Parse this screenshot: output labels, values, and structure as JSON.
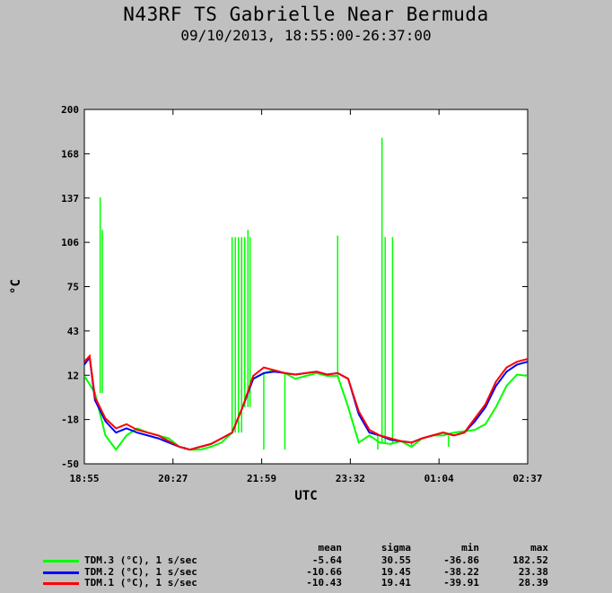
{
  "title": "N43RF TS Gabrielle Near Bermuda",
  "subtitle": "09/10/2013, 18:55:00-26:37:00",
  "chart_data": {
    "type": "line",
    "xlabel": "UTC",
    "ylabel": "°C",
    "x_ticks": [
      "18:55",
      "20:27",
      "21:59",
      "23:32",
      "01:04",
      "02:37"
    ],
    "y_ticks": [
      "200",
      "168",
      "137",
      "106",
      "75",
      "43",
      "12",
      "-18",
      "-50"
    ],
    "xlim": [
      "18:55",
      "26:37"
    ],
    "ylim": [
      -50,
      200
    ],
    "grid": false,
    "stats_headers": [
      "mean",
      "sigma",
      "min",
      "max"
    ],
    "series": [
      {
        "name": "TDM.3 (°C), 1 s/sec",
        "color": "#00ff00",
        "mean": "-5.64",
        "sigma": "30.55",
        "min": "-36.86",
        "max": "182.52",
        "points": [
          [
            0,
            12
          ],
          [
            10,
            0
          ],
          [
            20,
            -30
          ],
          [
            30,
            -40
          ],
          [
            40,
            -30
          ],
          [
            50,
            -25
          ],
          [
            60,
            -28
          ],
          [
            70,
            -30
          ],
          [
            80,
            -32
          ],
          [
            90,
            -38
          ],
          [
            100,
            -40
          ],
          [
            110,
            -40
          ],
          [
            120,
            -38
          ],
          [
            130,
            -35
          ],
          [
            140,
            -28
          ],
          [
            150,
            -10
          ],
          [
            160,
            10
          ],
          [
            170,
            14
          ],
          [
            180,
            16
          ],
          [
            190,
            14
          ],
          [
            200,
            10
          ],
          [
            210,
            12
          ],
          [
            220,
            14
          ],
          [
            230,
            12
          ],
          [
            240,
            12
          ],
          [
            250,
            -10
          ],
          [
            260,
            -35
          ],
          [
            270,
            -30
          ],
          [
            280,
            -35
          ],
          [
            290,
            -36
          ],
          [
            300,
            -34
          ],
          [
            310,
            -38
          ],
          [
            320,
            -32
          ],
          [
            330,
            -30
          ],
          [
            340,
            -30
          ],
          [
            350,
            -28
          ],
          [
            360,
            -27
          ],
          [
            370,
            -26
          ],
          [
            380,
            -22
          ],
          [
            390,
            -10
          ],
          [
            400,
            5
          ],
          [
            410,
            13
          ],
          [
            420,
            12
          ]
        ],
        "spikes": [
          [
            15,
            138
          ],
          [
            17,
            115
          ],
          [
            95,
            -40
          ],
          [
            100,
            -40
          ],
          [
            140,
            110
          ],
          [
            143,
            110
          ],
          [
            146,
            110
          ],
          [
            149,
            110
          ],
          [
            152,
            110
          ],
          [
            155,
            115
          ],
          [
            157,
            110
          ],
          [
            170,
            -40
          ],
          [
            190,
            -40
          ],
          [
            240,
            111
          ],
          [
            278,
            -40
          ],
          [
            282,
            180
          ],
          [
            285,
            110
          ],
          [
            292,
            110
          ],
          [
            310,
            -35
          ],
          [
            345,
            -38
          ]
        ]
      },
      {
        "name": "TDM.2 (°C), 1 s/sec",
        "color": "#0000ff",
        "mean": "-10.66",
        "sigma": "19.45",
        "min": "-38.22",
        "max": "23.38",
        "points": [
          [
            0,
            20
          ],
          [
            5,
            25
          ],
          [
            10,
            -5
          ],
          [
            20,
            -20
          ],
          [
            30,
            -28
          ],
          [
            40,
            -25
          ],
          [
            50,
            -28
          ],
          [
            60,
            -30
          ],
          [
            70,
            -32
          ],
          [
            80,
            -35
          ],
          [
            90,
            -38
          ],
          [
            100,
            -40
          ],
          [
            110,
            -38
          ],
          [
            120,
            -36
          ],
          [
            130,
            -32
          ],
          [
            140,
            -28
          ],
          [
            150,
            -10
          ],
          [
            160,
            10
          ],
          [
            170,
            14
          ],
          [
            180,
            15
          ],
          [
            190,
            14
          ],
          [
            200,
            13
          ],
          [
            210,
            14
          ],
          [
            220,
            15
          ],
          [
            230,
            13
          ],
          [
            240,
            14
          ],
          [
            250,
            10
          ],
          [
            260,
            -15
          ],
          [
            270,
            -28
          ],
          [
            280,
            -30
          ],
          [
            290,
            -33
          ],
          [
            300,
            -34
          ],
          [
            310,
            -35
          ],
          [
            320,
            -32
          ],
          [
            330,
            -30
          ],
          [
            340,
            -28
          ],
          [
            350,
            -30
          ],
          [
            360,
            -28
          ],
          [
            370,
            -20
          ],
          [
            380,
            -10
          ],
          [
            390,
            5
          ],
          [
            400,
            15
          ],
          [
            410,
            20
          ],
          [
            420,
            22
          ]
        ],
        "spikes": []
      },
      {
        "name": "TDM.1 (°C), 1 s/sec",
        "color": "#ff0000",
        "mean": "-10.43",
        "sigma": "19.41",
        "min": "-39.91",
        "max": "28.39",
        "points": [
          [
            0,
            22
          ],
          [
            5,
            26
          ],
          [
            10,
            -3
          ],
          [
            20,
            -18
          ],
          [
            30,
            -25
          ],
          [
            40,
            -22
          ],
          [
            50,
            -26
          ],
          [
            60,
            -28
          ],
          [
            70,
            -30
          ],
          [
            80,
            -34
          ],
          [
            90,
            -38
          ],
          [
            100,
            -40
          ],
          [
            110,
            -38
          ],
          [
            120,
            -36
          ],
          [
            130,
            -32
          ],
          [
            140,
            -28
          ],
          [
            150,
            -10
          ],
          [
            160,
            12
          ],
          [
            170,
            18
          ],
          [
            180,
            16
          ],
          [
            190,
            14
          ],
          [
            200,
            13
          ],
          [
            210,
            14
          ],
          [
            220,
            15
          ],
          [
            230,
            13
          ],
          [
            240,
            14
          ],
          [
            250,
            10
          ],
          [
            260,
            -13
          ],
          [
            270,
            -26
          ],
          [
            280,
            -30
          ],
          [
            290,
            -32
          ],
          [
            300,
            -34
          ],
          [
            310,
            -35
          ],
          [
            320,
            -32
          ],
          [
            330,
            -30
          ],
          [
            340,
            -28
          ],
          [
            350,
            -30
          ],
          [
            360,
            -28
          ],
          [
            370,
            -18
          ],
          [
            380,
            -8
          ],
          [
            390,
            8
          ],
          [
            400,
            18
          ],
          [
            410,
            22
          ],
          [
            420,
            24
          ]
        ],
        "spikes": []
      }
    ]
  }
}
